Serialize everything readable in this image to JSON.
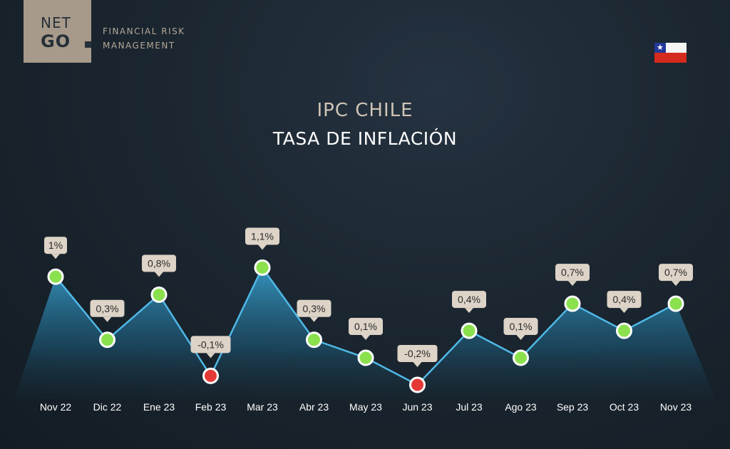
{
  "brand": {
    "logo_line1": "NET",
    "logo_line2": "GO",
    "tagline_line1": "FINANCIAL RISK",
    "tagline_line2": "MANAGEMENT",
    "flag": "chile-flag-icon"
  },
  "colors": {
    "positive": "#8be04e",
    "negative": "#e53935",
    "line": "#4fb8e6",
    "label_bg": "#ddd3c7"
  },
  "chart_data": {
    "type": "area",
    "title": "IPC CHILE",
    "subtitle": "TASA DE INFLACIÓN",
    "categories": [
      "Nov 22",
      "Dic 22",
      "Ene 23",
      "Feb 23",
      "Mar 23",
      "Abr 23",
      "May 23",
      "Jun 23",
      "Jul 23",
      "Ago 23",
      "Sep 23",
      "Oct 23",
      "Nov 23"
    ],
    "series": [
      {
        "values": [
          1.0,
          0.3,
          0.8,
          -0.1,
          1.1,
          0.3,
          0.1,
          -0.2,
          0.4,
          0.1,
          0.7,
          0.4,
          0.7
        ],
        "data_labels": [
          "1%",
          "0,3%",
          "0,8%",
          "-0,1%",
          "1,1%",
          "0,3%",
          "0,1%",
          "-0,2%",
          "0,4%",
          "0,1%",
          "0,7%",
          "0,4%",
          "0,7%"
        ]
      }
    ],
    "grid": false,
    "legend": "none"
  }
}
